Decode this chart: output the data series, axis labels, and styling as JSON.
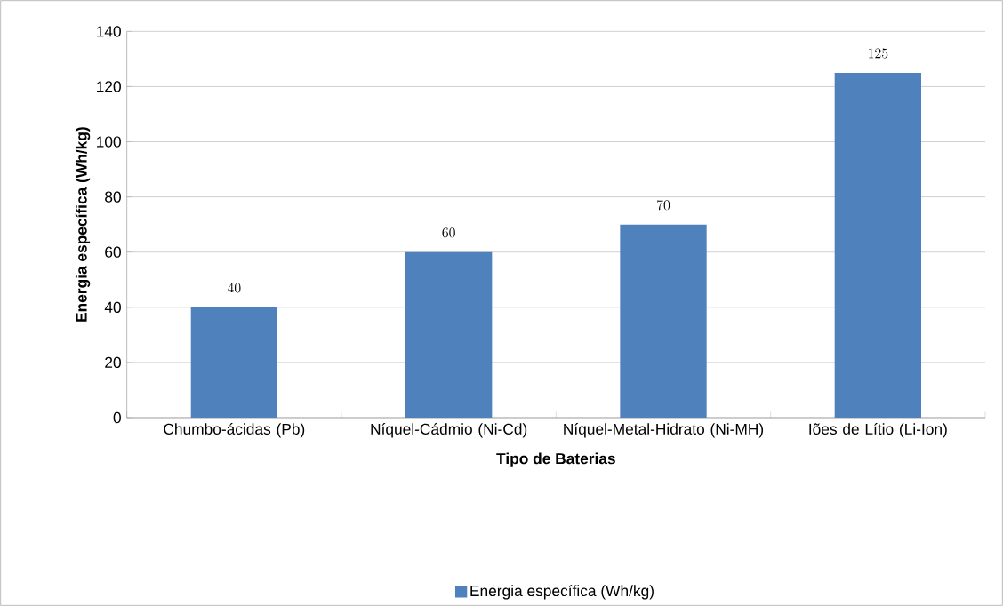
{
  "chart_data": {
    "type": "bar",
    "xlabel": "Tipo de Baterias",
    "ylabel": "Energia específica (Wh/kg)",
    "categories": [
      "Chumbo-ácidas (Pb)",
      "Níquel-Cádmio (Ni-Cd)",
      "Níquel-Metal-Hidrato (Ni-MH)",
      "Iões de Lítio  (Li-Ion)"
    ],
    "series": [
      {
        "name": "Energia específica (Wh/kg)",
        "color": "#4f81bd",
        "values": [
          40,
          60,
          70,
          125
        ]
      }
    ],
    "ylim": [
      0,
      140
    ],
    "yticks": [
      0,
      20,
      40,
      60,
      80,
      100,
      120,
      140
    ],
    "grid": "y",
    "legend": "bottom",
    "data_labels": true
  }
}
